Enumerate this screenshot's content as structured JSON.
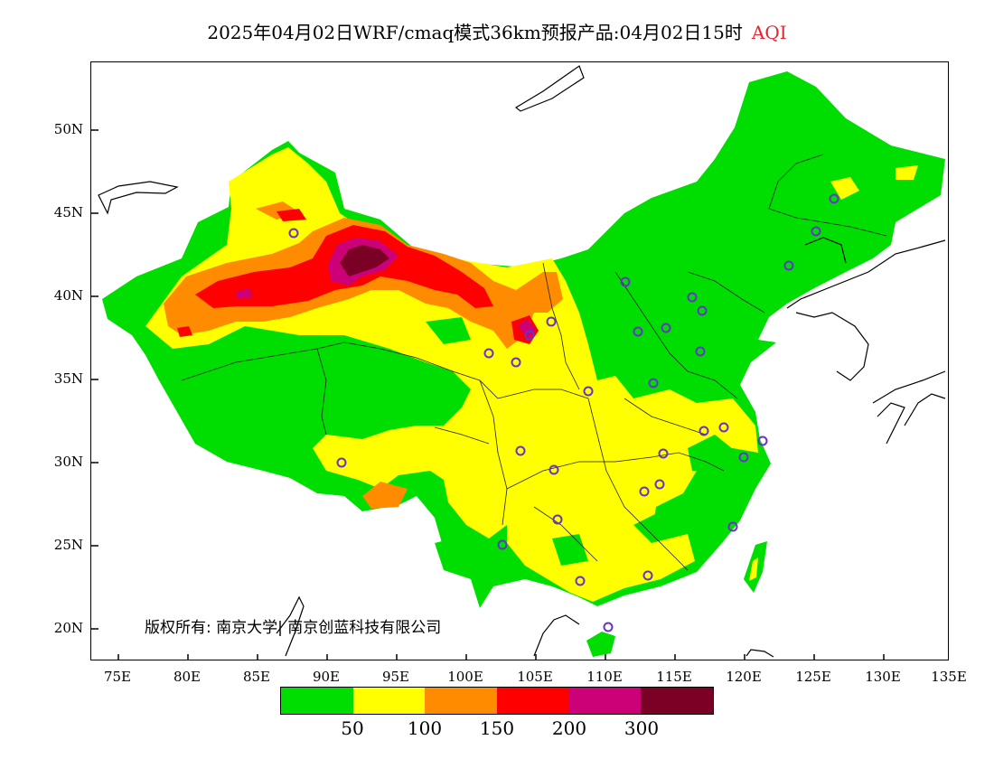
{
  "title": {
    "main": "2025年04月02日WRF/cmaq模式36km预报产品:04月02日15时",
    "variable": "AQI",
    "variable_color": "#e8222e"
  },
  "axes": {
    "lat_labels": [
      "50N",
      "45N",
      "40N",
      "35N",
      "30N",
      "25N",
      "20N"
    ],
    "lon_labels": [
      "75E",
      "80E",
      "85E",
      "90E",
      "95E",
      "100E",
      "105E",
      "110E",
      "115E",
      "120E",
      "125E",
      "130E",
      "135E"
    ]
  },
  "legend": {
    "colors": [
      "#00dd00",
      "#ffff00",
      "#ff8c00",
      "#ff0000",
      "#cc0077",
      "#7a0025"
    ],
    "labels": [
      "50",
      "100",
      "150",
      "200",
      "300"
    ]
  },
  "copyright": "版权所有: 南京大学| 南京创蓝科技有限公司",
  "colors": {
    "good": "#00dd00",
    "moderate": "#ffff00",
    "light": "#ff8c00",
    "medium": "#ff0000",
    "heavy": "#cc0077",
    "severe": "#7a0025",
    "station_marker": "#6633cc"
  }
}
